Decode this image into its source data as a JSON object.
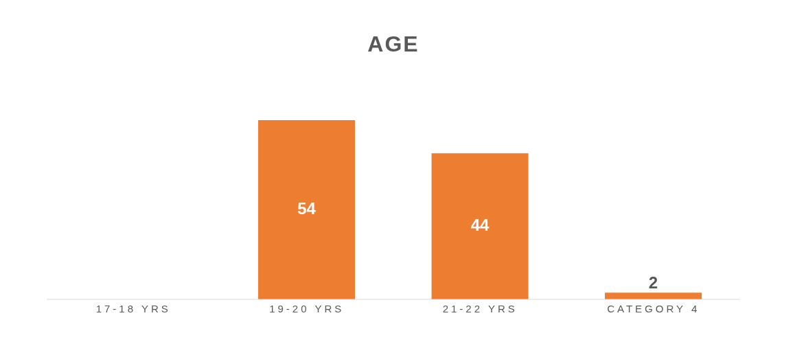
{
  "chart_data": {
    "type": "bar",
    "title": "AGE",
    "categories": [
      "17-18 YRS",
      "19-20 YRS",
      "21-22 YRS",
      "CATEGORY 4"
    ],
    "values": [
      null,
      54,
      44,
      2
    ],
    "color": "#ed7d31",
    "data_labels": true
  }
}
